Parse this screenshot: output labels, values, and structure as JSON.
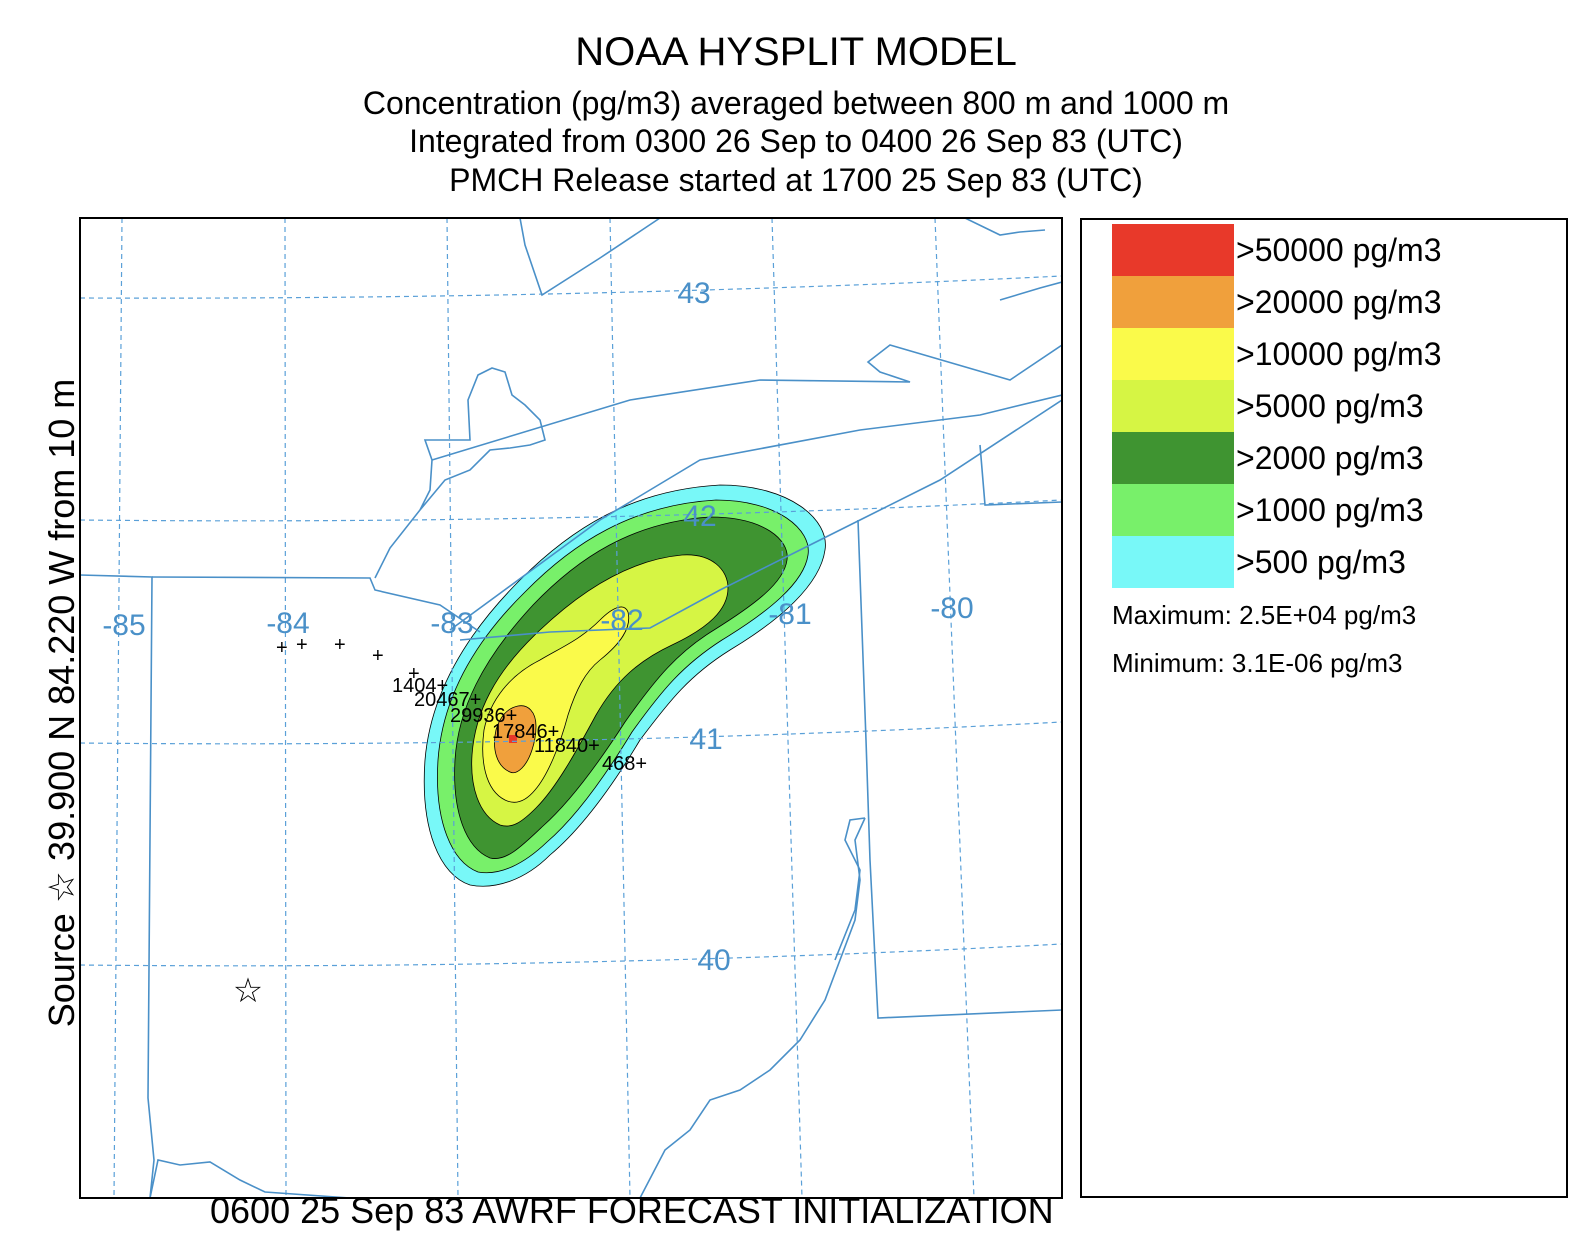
{
  "title": "NOAA HYSPLIT MODEL",
  "subtitle_lines": [
    "Concentration  (pg/m3) averaged between   800 m and  1000 m",
    "Integrated from 0300 26 Sep to 0400 26 Sep 83 (UTC)",
    "PMCH Release started at 1700 25 Sep 83 (UTC)"
  ],
  "side_label": "Source ☆  39.900  N  84.220  W    from    10 m",
  "footer": "0600 25 Sep 83 AWRF FORECAST INITIALIZATION",
  "map": {
    "longitude_labels": [
      "-85",
      "-84",
      "-83",
      "-82",
      "-81",
      "-80"
    ],
    "latitude_labels": [
      "43",
      "42",
      "41",
      "40"
    ],
    "source_marker": "☆",
    "station_values": [
      "1404+",
      "20467+",
      "29936+",
      "17846+",
      "11840+",
      "468+"
    ],
    "unlabeled_station_markers": [
      "+",
      "+",
      "+",
      "+",
      "+"
    ],
    "colors": {
      "boundary": "#4a90c8",
      "grid": "#5aa0d8",
      "grid_label": "#4a90c8"
    }
  },
  "legend": {
    "items": [
      {
        "label": ">50000 pg/m3",
        "color": "#e8392a"
      },
      {
        "label": ">20000 pg/m3",
        "color": "#f0a03c"
      },
      {
        "label": ">10000 pg/m3",
        "color": "#fafa4a"
      },
      {
        "label": ">5000 pg/m3",
        "color": "#d6f544"
      },
      {
        "label": ">2000 pg/m3",
        "color": "#3f9431"
      },
      {
        "label": ">1000 pg/m3",
        "color": "#78f06a"
      },
      {
        "label": ">500 pg/m3",
        "color": "#78f8f8"
      }
    ],
    "maximum": "Maximum: 2.5E+04 pg/m3",
    "minimum": "Minimum: 3.1E-06 pg/m3"
  }
}
